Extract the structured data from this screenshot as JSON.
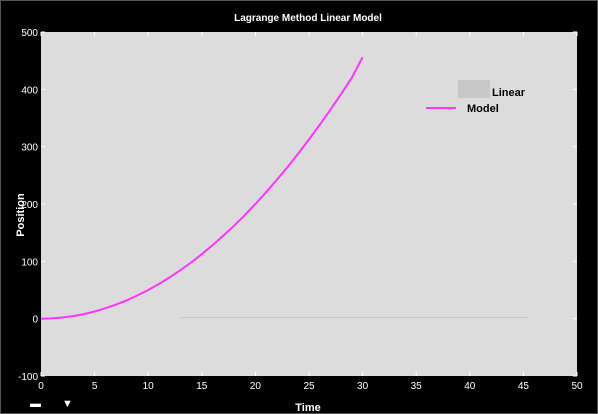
{
  "chart_data": {
    "type": "line",
    "title": "Lagrange Method Linear Model",
    "xlabel": "Time",
    "ylabel": "Position",
    "xlim": [
      0,
      50
    ],
    "ylim": [
      -100,
      500
    ],
    "xticks": [
      0,
      5,
      10,
      15,
      20,
      25,
      30,
      35,
      40,
      45,
      50
    ],
    "yticks": [
      -100,
      0,
      100,
      200,
      300,
      400,
      500
    ],
    "grid": false,
    "legend_position": "top-right",
    "series": [
      {
        "name": "Linear",
        "color": "#c8c8c8",
        "style": "line",
        "x": [
          13,
          15,
          20,
          25,
          30,
          35,
          40,
          45.5
        ],
        "y": [
          2,
          2,
          2,
          2,
          2,
          2,
          2,
          2
        ]
      },
      {
        "name": "Model",
        "color": "#ff33ff",
        "style": "line",
        "x": [
          0,
          1,
          2,
          3,
          4,
          5,
          6,
          7,
          8,
          9,
          10,
          11,
          12,
          13,
          14,
          15,
          16,
          17,
          18,
          19,
          20,
          21,
          22,
          23,
          24,
          25,
          26,
          27,
          28,
          29,
          30
        ],
        "y": [
          0,
          0.5,
          2,
          4.5,
          8,
          12.5,
          18,
          24.5,
          32,
          40.5,
          50,
          60.5,
          72,
          84.5,
          98,
          112.5,
          128,
          144.5,
          162,
          180.5,
          200,
          220.5,
          242,
          264.5,
          288,
          312.5,
          338,
          364.5,
          392,
          420.5,
          456
        ]
      }
    ]
  },
  "colors": {
    "background": "#000000",
    "plot_area": "#dcdcdc",
    "text": "#ffffff"
  }
}
